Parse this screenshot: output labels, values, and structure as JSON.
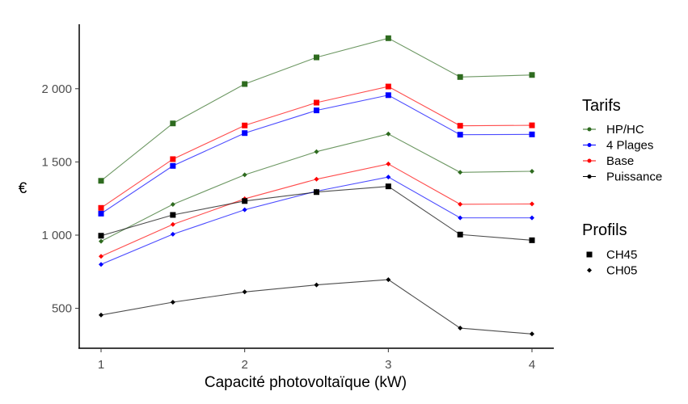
{
  "chart_data": {
    "type": "line",
    "xlabel": "Capacité photovoltaïque (kW)",
    "ylabel": "€",
    "x": [
      1,
      1.5,
      2,
      2.5,
      3,
      3.5,
      4
    ],
    "x_ticks": [
      1,
      2,
      3,
      4
    ],
    "x_tick_labels": [
      "1",
      "2",
      "3",
      "4"
    ],
    "y_ticks": [
      500,
      1000,
      1500,
      2000
    ],
    "y_tick_labels": [
      "500",
      "1 000",
      "1 500",
      "2 000"
    ],
    "xlim": [
      0.85,
      4.15
    ],
    "ylim": [
      240,
      2440
    ],
    "grid": false,
    "legend_placement": "right",
    "legends": [
      {
        "title": "Tarifs",
        "items": [
          {
            "label": "HP/HC",
            "color": "#2E6B1F"
          },
          {
            "label": "4 Plages",
            "color": "#0000FF"
          },
          {
            "label": "Base",
            "color": "#FF0000"
          },
          {
            "label": "Puissance",
            "color": "#000000"
          }
        ]
      },
      {
        "title": "Profils",
        "items": [
          {
            "label": "CH45",
            "shape": "square"
          },
          {
            "label": "CH05",
            "shape": "diamond"
          }
        ]
      }
    ],
    "series": [
      {
        "tarif": "HP/HC",
        "profil": "CH45",
        "values": [
          1371,
          1763,
          2032,
          2214,
          2345,
          2080,
          2094
        ]
      },
      {
        "tarif": "Base",
        "profil": "CH45",
        "values": [
          1186,
          1519,
          1749,
          1905,
          2015,
          1747,
          1750
        ]
      },
      {
        "tarif": "4 Plages",
        "profil": "CH45",
        "values": [
          1147,
          1473,
          1697,
          1852,
          1956,
          1686,
          1688
        ]
      },
      {
        "tarif": "HP/HC",
        "profil": "CH05",
        "values": [
          958,
          1210,
          1412,
          1570,
          1691,
          1429,
          1436
        ]
      },
      {
        "tarif": "Base",
        "profil": "CH05",
        "values": [
          855,
          1073,
          1248,
          1382,
          1486,
          1211,
          1213
        ]
      },
      {
        "tarif": "4 Plages",
        "profil": "CH05",
        "values": [
          800,
          1006,
          1173,
          1300,
          1397,
          1118,
          1118
        ]
      },
      {
        "tarif": "Puissance",
        "profil": "CH45",
        "values": [
          996,
          1138,
          1233,
          1294,
          1333,
          1004,
          965
        ]
      },
      {
        "tarif": "Puissance",
        "profil": "CH05",
        "values": [
          454,
          542,
          612,
          660,
          696,
          365,
          325
        ]
      }
    ]
  }
}
